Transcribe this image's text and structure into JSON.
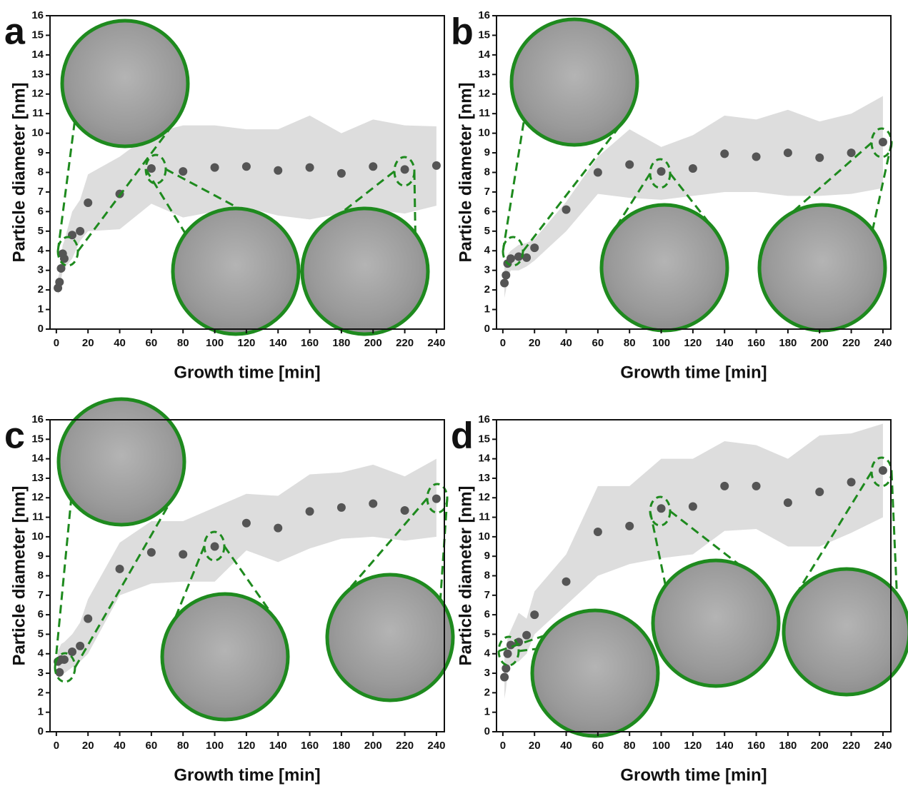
{
  "chart_data": [
    {
      "type": "scatter",
      "panel": "a",
      "x_label": "Growth time [min]",
      "y_label": "Particle diameter [nm]",
      "x": [
        1,
        2,
        3,
        4,
        5,
        10,
        15,
        20,
        40,
        60,
        80,
        100,
        120,
        140,
        160,
        180,
        200,
        220,
        240
      ],
      "values": [
        2.1,
        2.4,
        3.1,
        3.85,
        3.6,
        4.8,
        5.0,
        6.45,
        6.9,
        8.2,
        8.05,
        8.25,
        8.3,
        8.1,
        8.25,
        7.95,
        8.3,
        8.15,
        8.35
      ],
      "upper": [
        2.6,
        2.9,
        3.6,
        4.3,
        4.5,
        6.0,
        6.6,
        7.9,
        8.8,
        10.0,
        10.4,
        10.4,
        10.2,
        10.2,
        10.9,
        10.0,
        10.7,
        10.4,
        10.35
      ],
      "lower": [
        1.8,
        1.9,
        2.5,
        3.0,
        3.1,
        3.6,
        4.5,
        5.0,
        5.1,
        6.4,
        5.7,
        6.0,
        6.2,
        5.8,
        5.6,
        5.9,
        6.1,
        5.9,
        6.3
      ],
      "color": "#555555",
      "band_color": "#dddddd",
      "inset_color": "#1e8a1e",
      "xlim": [
        -4,
        245
      ],
      "ylim": [
        0,
        16
      ],
      "xticks": [
        0,
        20,
        40,
        60,
        80,
        100,
        120,
        140,
        160,
        180,
        200,
        220,
        240
      ],
      "yticks": [
        0,
        1,
        2,
        3,
        4,
        5,
        6,
        7,
        8,
        9,
        10,
        11,
        12,
        13,
        14,
        15,
        16
      ]
    },
    {
      "type": "scatter",
      "panel": "b",
      "x_label": "Growth time [min]",
      "y_label": "Particle diameter [nm]",
      "x": [
        1,
        2,
        3,
        5,
        10,
        15,
        20,
        40,
        60,
        80,
        100,
        120,
        140,
        160,
        180,
        200,
        220,
        240
      ],
      "values": [
        2.35,
        2.75,
        3.35,
        3.6,
        3.7,
        3.65,
        4.15,
        6.1,
        8.0,
        8.4,
        8.05,
        8.2,
        8.95,
        8.8,
        9.0,
        8.75,
        9.0,
        9.55
      ],
      "upper": [
        3.2,
        3.4,
        3.8,
        4.0,
        4.3,
        4.4,
        4.6,
        6.5,
        8.8,
        10.2,
        9.3,
        9.9,
        10.9,
        10.7,
        11.2,
        10.6,
        11.0,
        11.9
      ],
      "lower": [
        1.6,
        2.0,
        2.6,
        3.0,
        3.0,
        3.2,
        3.5,
        5.0,
        6.9,
        6.7,
        6.6,
        6.8,
        7.0,
        7.0,
        6.8,
        6.8,
        6.9,
        7.2
      ],
      "color": "#555555",
      "band_color": "#dddddd",
      "inset_color": "#1e8a1e",
      "xlim": [
        -4,
        245
      ],
      "ylim": [
        0,
        16
      ],
      "xticks": [
        0,
        20,
        40,
        60,
        80,
        100,
        120,
        140,
        160,
        180,
        200,
        220,
        240
      ],
      "yticks": [
        0,
        1,
        2,
        3,
        4,
        5,
        6,
        7,
        8,
        9,
        10,
        11,
        12,
        13,
        14,
        15,
        16
      ]
    },
    {
      "type": "scatter",
      "panel": "c",
      "x_label": "Growth time [min]",
      "y_label": "Particle diameter [nm]",
      "x": [
        1,
        2,
        3,
        5,
        10,
        15,
        20,
        40,
        60,
        80,
        100,
        120,
        140,
        160,
        180,
        200,
        220,
        240
      ],
      "values": [
        3.6,
        3.05,
        3.7,
        3.7,
        4.1,
        4.4,
        5.8,
        8.35,
        9.2,
        9.1,
        9.5,
        10.7,
        10.45,
        11.3,
        11.5,
        11.7,
        11.35,
        11.95
      ],
      "upper": [
        4.2,
        4.3,
        4.5,
        4.6,
        5.0,
        5.6,
        6.8,
        9.7,
        10.8,
        10.8,
        11.5,
        12.2,
        12.1,
        13.2,
        13.3,
        13.7,
        13.1,
        14.0
      ],
      "lower": [
        2.7,
        2.8,
        2.9,
        3.0,
        3.3,
        3.6,
        4.0,
        7.0,
        7.6,
        7.7,
        7.7,
        9.3,
        8.7,
        9.4,
        9.9,
        10.0,
        9.8,
        10.0
      ],
      "color": "#555555",
      "band_color": "#dddddd",
      "inset_color": "#1e8a1e",
      "xlim": [
        -4,
        245
      ],
      "ylim": [
        0,
        16
      ],
      "xticks": [
        0,
        20,
        40,
        60,
        80,
        100,
        120,
        140,
        160,
        180,
        200,
        220,
        240
      ],
      "yticks": [
        0,
        1,
        2,
        3,
        4,
        5,
        6,
        7,
        8,
        9,
        10,
        11,
        12,
        13,
        14,
        15,
        16
      ]
    },
    {
      "type": "scatter",
      "panel": "d",
      "x_label": "Growth time [min]",
      "y_label": "Particle diameter [nm]",
      "x": [
        1,
        2,
        3,
        5,
        10,
        15,
        20,
        40,
        60,
        80,
        100,
        120,
        140,
        160,
        180,
        200,
        220,
        240
      ],
      "values": [
        2.8,
        3.25,
        4.0,
        4.45,
        4.6,
        4.95,
        6.0,
        7.7,
        10.25,
        10.55,
        11.45,
        11.55,
        12.6,
        12.6,
        11.75,
        12.3,
        12.8,
        13.4
      ],
      "upper": [
        4.0,
        4.3,
        4.8,
        5.2,
        6.1,
        5.8,
        7.2,
        9.1,
        12.6,
        12.6,
        14.0,
        14.0,
        14.9,
        14.7,
        14.0,
        15.2,
        15.3,
        15.8
      ],
      "lower": [
        1.7,
        2.2,
        3.0,
        3.5,
        3.6,
        4.0,
        5.0,
        6.5,
        8.0,
        8.6,
        8.9,
        9.1,
        10.3,
        10.4,
        9.5,
        9.5,
        10.2,
        11.0
      ],
      "color": "#555555",
      "band_color": "#dddddd",
      "inset_color": "#1e8a1e",
      "xlim": [
        -4,
        245
      ],
      "ylim": [
        0,
        16
      ],
      "xticks": [
        0,
        20,
        40,
        60,
        80,
        100,
        120,
        140,
        160,
        180,
        200,
        220,
        240
      ],
      "yticks": [
        0,
        1,
        2,
        3,
        4,
        5,
        6,
        7,
        8,
        9,
        10,
        11,
        12,
        13,
        14,
        15,
        16
      ]
    }
  ]
}
